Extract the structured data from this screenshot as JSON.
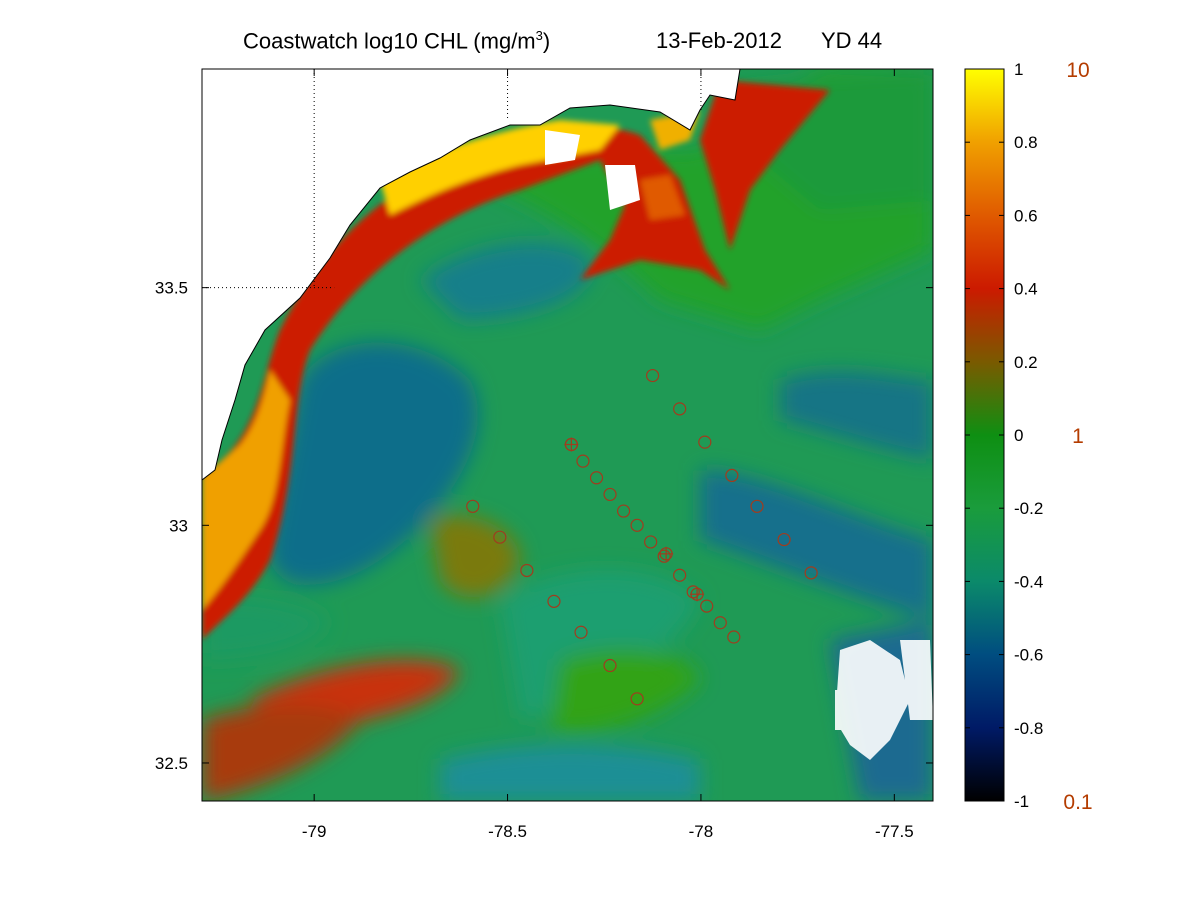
{
  "title": {
    "text": "Coastwatch  log10  CHL (mg/m",
    "superscript": "3",
    "close": ")",
    "date": "13-Feb-2012",
    "yearday": "YD 44"
  },
  "map": {
    "lon_range": [
      -79.29,
      -77.4
    ],
    "lat_range": [
      32.42,
      33.96
    ],
    "lon_ticks": [
      {
        "v": -79,
        "label": "-79"
      },
      {
        "v": -78.5,
        "label": "-78.5"
      },
      {
        "v": -78,
        "label": "-78"
      },
      {
        "v": -77.5,
        "label": "-77.5"
      }
    ],
    "lat_ticks": [
      {
        "v": 33.5,
        "label": "33.5"
      },
      {
        "v": 33,
        "label": "33"
      },
      {
        "v": 32.5,
        "label": "32.5"
      }
    ],
    "grid": "dotted, land only"
  },
  "colorbar": {
    "range": [
      -1,
      1
    ],
    "ticks": [
      {
        "v": 1,
        "label": "1"
      },
      {
        "v": 0.8,
        "label": "0.8"
      },
      {
        "v": 0.6,
        "label": "0.6"
      },
      {
        "v": 0.4,
        "label": "0.4"
      },
      {
        "v": 0.2,
        "label": "0.2"
      },
      {
        "v": 0,
        "label": "0"
      },
      {
        "v": -0.2,
        "label": "-0.2"
      },
      {
        "v": -0.4,
        "label": "-0.4"
      },
      {
        "v": -0.6,
        "label": "-0.6"
      },
      {
        "v": -0.8,
        "label": "-0.8"
      },
      {
        "v": -1,
        "label": "-1"
      }
    ],
    "linear_labels": [
      {
        "v": 1,
        "label": "10"
      },
      {
        "v": 0,
        "label": "1"
      },
      {
        "v": -1,
        "label": "0.1"
      }
    ],
    "linear_label_color": "#b43c00",
    "colors": [
      "#000000",
      "#001a66",
      "#004d80",
      "#0b8a6a",
      "#1a9c3c",
      "#0e8f12",
      "#7a5a00",
      "#cc1a00",
      "#e05a00",
      "#f0a000",
      "#ffff00"
    ]
  },
  "stations": {
    "color": "#a03c1e",
    "circles": [
      {
        "lon": -78.125,
        "lat": 33.315
      },
      {
        "lon": -78.055,
        "lat": 33.245
      },
      {
        "lon": -77.99,
        "lat": 33.175
      },
      {
        "lon": -77.92,
        "lat": 33.105
      },
      {
        "lon": -77.855,
        "lat": 33.04
      },
      {
        "lon": -77.785,
        "lat": 32.97
      },
      {
        "lon": -77.715,
        "lat": 32.9
      },
      {
        "lon": -78.335,
        "lat": 33.17
      },
      {
        "lon": -78.305,
        "lat": 33.135
      },
      {
        "lon": -78.27,
        "lat": 33.1
      },
      {
        "lon": -78.235,
        "lat": 33.065
      },
      {
        "lon": -78.2,
        "lat": 33.03
      },
      {
        "lon": -78.165,
        "lat": 33
      },
      {
        "lon": -78.13,
        "lat": 32.965
      },
      {
        "lon": -78.095,
        "lat": 32.935
      },
      {
        "lon": -78.055,
        "lat": 32.895
      },
      {
        "lon": -78.02,
        "lat": 32.86
      },
      {
        "lon": -77.985,
        "lat": 32.83
      },
      {
        "lon": -77.95,
        "lat": 32.795
      },
      {
        "lon": -77.915,
        "lat": 32.765
      },
      {
        "lon": -78.59,
        "lat": 33.04
      },
      {
        "lon": -78.52,
        "lat": 32.975
      },
      {
        "lon": -78.45,
        "lat": 32.905
      },
      {
        "lon": -78.38,
        "lat": 32.84
      },
      {
        "lon": -78.31,
        "lat": 32.775
      },
      {
        "lon": -78.235,
        "lat": 32.705
      },
      {
        "lon": -78.165,
        "lat": 32.635
      }
    ],
    "crosses": [
      {
        "lon": -78.335,
        "lat": 33.17
      },
      {
        "lon": -78.09,
        "lat": 32.94
      },
      {
        "lon": -78.01,
        "lat": 32.855
      }
    ]
  }
}
